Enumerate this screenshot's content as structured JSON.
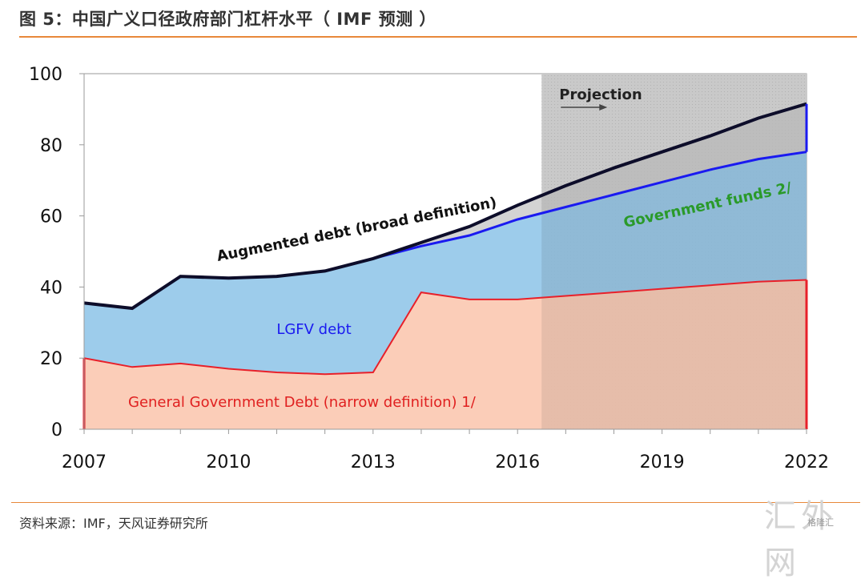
{
  "header": {
    "title": "图 5：中国广义口径政府部门杠杆水平（ IMF 预测 ）"
  },
  "footer": {
    "source": "资料来源：IMF，天风证券研究所"
  },
  "watermark": {
    "text": "汇外网",
    "sub": "格隆汇"
  },
  "colors": {
    "orange_rule": "#e8883a",
    "general_gov_fill": "#fbc8b0",
    "general_gov_line": "#e8202a",
    "lgfv_fill": "#8cc3e8",
    "lgfv_line": "#1a1af0",
    "gov_funds_fill": "#c4c4c4",
    "augmented_line": "#0d0d2a",
    "projection_shade": "#d6d6d6"
  },
  "chart_data": {
    "type": "area",
    "title": "",
    "xlabel": "",
    "ylabel": "",
    "xlim": [
      2007,
      2022
    ],
    "ylim": [
      0,
      100
    ],
    "x_ticks": [
      2007,
      2010,
      2013,
      2016,
      2019,
      2022
    ],
    "y_ticks": [
      0,
      20,
      40,
      60,
      80,
      100
    ],
    "grid": false,
    "projection_start": 2016.5,
    "projection_label": "Projection",
    "x": [
      2007,
      2008,
      2009,
      2010,
      2011,
      2012,
      2013,
      2014,
      2015,
      2016,
      2017,
      2018,
      2019,
      2020,
      2021,
      2022
    ],
    "series": [
      {
        "name": "General Government Debt (narrow definition) 1/",
        "values": [
          20,
          17.5,
          18.5,
          17,
          16,
          15.5,
          16,
          38.5,
          36.5,
          36.5,
          37.5,
          38.5,
          39.5,
          40.5,
          41.5,
          42
        ]
      },
      {
        "name": "LGFV debt",
        "values": [
          35.5,
          34,
          43,
          42.5,
          43,
          44.5,
          48,
          51.5,
          54.5,
          59,
          62.5,
          66,
          69.5,
          73,
          76,
          78
        ]
      },
      {
        "name": "Government funds 2/",
        "values": [
          35.5,
          34,
          43,
          42.5,
          43,
          44.5,
          48,
          52.5,
          57,
          63,
          68.5,
          73.5,
          78,
          82.5,
          87.5,
          91.5
        ]
      },
      {
        "name": "Augmented debt (broad definition)",
        "values": [
          35.5,
          34,
          43,
          42.5,
          43,
          44.5,
          48,
          52.5,
          57,
          63,
          68.5,
          73.5,
          78,
          82.5,
          87.5,
          91.5
        ]
      }
    ],
    "annotations": {
      "augmented": "Augmented debt  (broad definition)",
      "lgfv": "LGFV debt",
      "gov_funds": "Government funds 2/",
      "general": "General Government Debt (narrow definition) 1/"
    }
  }
}
